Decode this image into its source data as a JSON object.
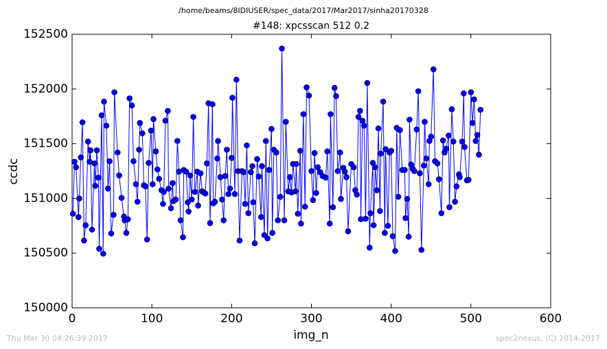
{
  "chart_data": {
    "type": "line",
    "suptitle": "/home/beams/8IDIUSER/spec_data/2017/Mar2017/sinha20170328",
    "title": "#148: xpcsscan 512 0.2",
    "x_label": "img_n",
    "y_label": "ccdc",
    "footer_left": "Thu Mar 30 04:26:39 2017",
    "footer_right": "spec2nexus, (C) 2014-2017",
    "xlim": [
      0,
      600
    ],
    "xticks": [
      0,
      100,
      200,
      300,
      400,
      500,
      600
    ],
    "ylim": [
      150000,
      152500
    ],
    "yticks": [
      150000,
      150500,
      151000,
      151500,
      152000,
      152500
    ],
    "x": [
      1,
      3,
      5,
      8,
      9,
      11,
      13,
      15,
      17,
      20,
      22,
      23,
      25,
      28,
      29,
      31,
      33,
      34,
      37,
      39,
      40,
      43,
      45,
      47,
      49,
      52,
      53,
      57,
      59,
      62,
      65,
      66,
      68,
      70,
      72,
      75,
      77,
      80,
      82,
      84,
      85,
      88,
      90,
      92,
      94,
      96,
      99,
      101,
      102,
      105,
      107,
      109,
      112,
      114,
      115,
      117,
      120,
      121,
      124,
      126,
      127,
      130,
      132,
      134,
      136,
      139,
      140,
      143,
      145,
      146,
      148,
      150,
      152,
      154,
      157,
      158,
      161,
      163,
      165,
      167,
      169,
      171,
      173,
      176,
      177,
      179,
      182,
      183,
      186,
      188,
      190,
      192,
      194,
      196,
      198,
      200,
      201,
      204,
      206,
      208,
      210,
      213,
      215,
      217,
      219,
      221,
      224,
      226,
      227,
      229,
      232,
      234,
      237,
      238,
      241,
      243,
      245,
      247,
      250,
      251,
      253,
      256,
      258,
      261,
      263,
      266,
      268,
      271,
      273,
      275,
      277,
      280,
      281,
      283,
      286,
      287,
      290,
      292,
      294,
      297,
      300,
      302,
      304,
      306,
      308,
      311,
      314,
      318,
      320,
      323,
      324,
      327,
      329,
      331,
      333,
      336,
      337,
      340,
      342,
      344,
      346,
      350,
      353,
      355,
      357,
      359,
      361,
      362,
      364,
      366,
      368,
      370,
      373,
      374,
      377,
      378,
      380,
      382,
      384,
      386,
      387,
      390,
      392,
      393,
      396,
      398,
      400,
      402,
      405,
      407,
      409,
      411,
      414,
      417,
      418,
      420,
      422,
      423,
      425,
      427,
      429,
      432,
      434,
      436,
      438,
      441,
      442,
      444,
      447,
      448,
      450,
      453,
      455,
      458,
      460,
      463,
      465,
      467,
      469,
      472,
      473,
      476,
      478,
      480,
      482,
      485,
      486,
      489,
      491,
      492,
      495,
      497,
      500,
      502,
      504,
      506,
      508,
      510,
      512
    ],
    "series": [
      {
        "name": "ccdc",
        "color": "#0000ff",
        "values": [
          150860,
          151335,
          151285,
          150830,
          151000,
          151375,
          151695,
          150615,
          150755,
          151520,
          151335,
          151440,
          150715,
          151320,
          151115,
          151440,
          151190,
          150540,
          151760,
          150495,
          151885,
          151665,
          151090,
          151340,
          150680,
          150850,
          151970,
          151420,
          151210,
          151005,
          150835,
          150800,
          150685,
          150810,
          151915,
          151850,
          151340,
          151130,
          150970,
          151445,
          151690,
          151595,
          151120,
          151110,
          150625,
          151325,
          151620,
          151130,
          151725,
          151430,
          151265,
          151180,
          151075,
          150950,
          151060,
          151710,
          151800,
          151090,
          150910,
          151140,
          150975,
          150990,
          151525,
          151245,
          150800,
          150645,
          151260,
          151245,
          150965,
          150880,
          151210,
          150990,
          151745,
          151060,
          151245,
          150935,
          151230,
          151065,
          151055,
          151045,
          151320,
          151870,
          150775,
          151860,
          150955,
          150970,
          151365,
          151525,
          151195,
          150990,
          150800,
          151205,
          151445,
          151040,
          151090,
          151370,
          151920,
          151040,
          152085,
          151250,
          150615,
          151250,
          151240,
          150950,
          151485,
          150865,
          151240,
          151295,
          150965,
          150590,
          151360,
          151200,
          150830,
          151295,
          150665,
          151525,
          150635,
          151260,
          151635,
          150685,
          151445,
          151420,
          150800,
          151015,
          152370,
          150800,
          151700,
          151065,
          151195,
          151055,
          151315,
          151065,
          151315,
          150860,
          151435,
          150770,
          151770,
          150925,
          152015,
          151940,
          151250,
          150985,
          151415,
          151050,
          151285,
          151240,
          151205,
          151190,
          151430,
          150770,
          151770,
          150920,
          152010,
          151935,
          151250,
          151420,
          150995,
          151280,
          151245,
          151195,
          150700,
          151315,
          151285,
          151075,
          151035,
          151745,
          151800,
          150810,
          151710,
          151665,
          150815,
          152055,
          150550,
          150865,
          151325,
          150755,
          151285,
          151075,
          151640,
          150885,
          151410,
          151885,
          150685,
          151450,
          150750,
          151420,
          151435,
          150655,
          150520,
          151645,
          151015,
          151625,
          151260,
          151260,
          150820,
          150995,
          150650,
          151720,
          151310,
          151270,
          151250,
          151630,
          151980,
          151230,
          150530,
          151300,
          151700,
          151365,
          151130,
          151525,
          151565,
          152180,
          151340,
          151320,
          151175,
          150865,
          151530,
          151420,
          151455,
          151575,
          150920,
          151815,
          151520,
          150970,
          151110,
          151220,
          151195,
          151520,
          151960,
          151470,
          151165,
          151170,
          151970,
          151690,
          151905,
          151525,
          151580,
          151400,
          151810
        ]
      }
    ]
  }
}
